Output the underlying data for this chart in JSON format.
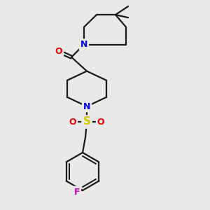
{
  "bg_color": "#e9e9e9",
  "atom_colors": {
    "C": "#1a1a1a",
    "N": "#0000ee",
    "O": "#ee0000",
    "S": "#cccc00",
    "F": "#cc00cc"
  },
  "bond_color": "#1a1a1a",
  "bond_width": 1.6,
  "font_size_atom": 9,
  "figsize": [
    3.0,
    3.0
  ],
  "dpi": 100
}
